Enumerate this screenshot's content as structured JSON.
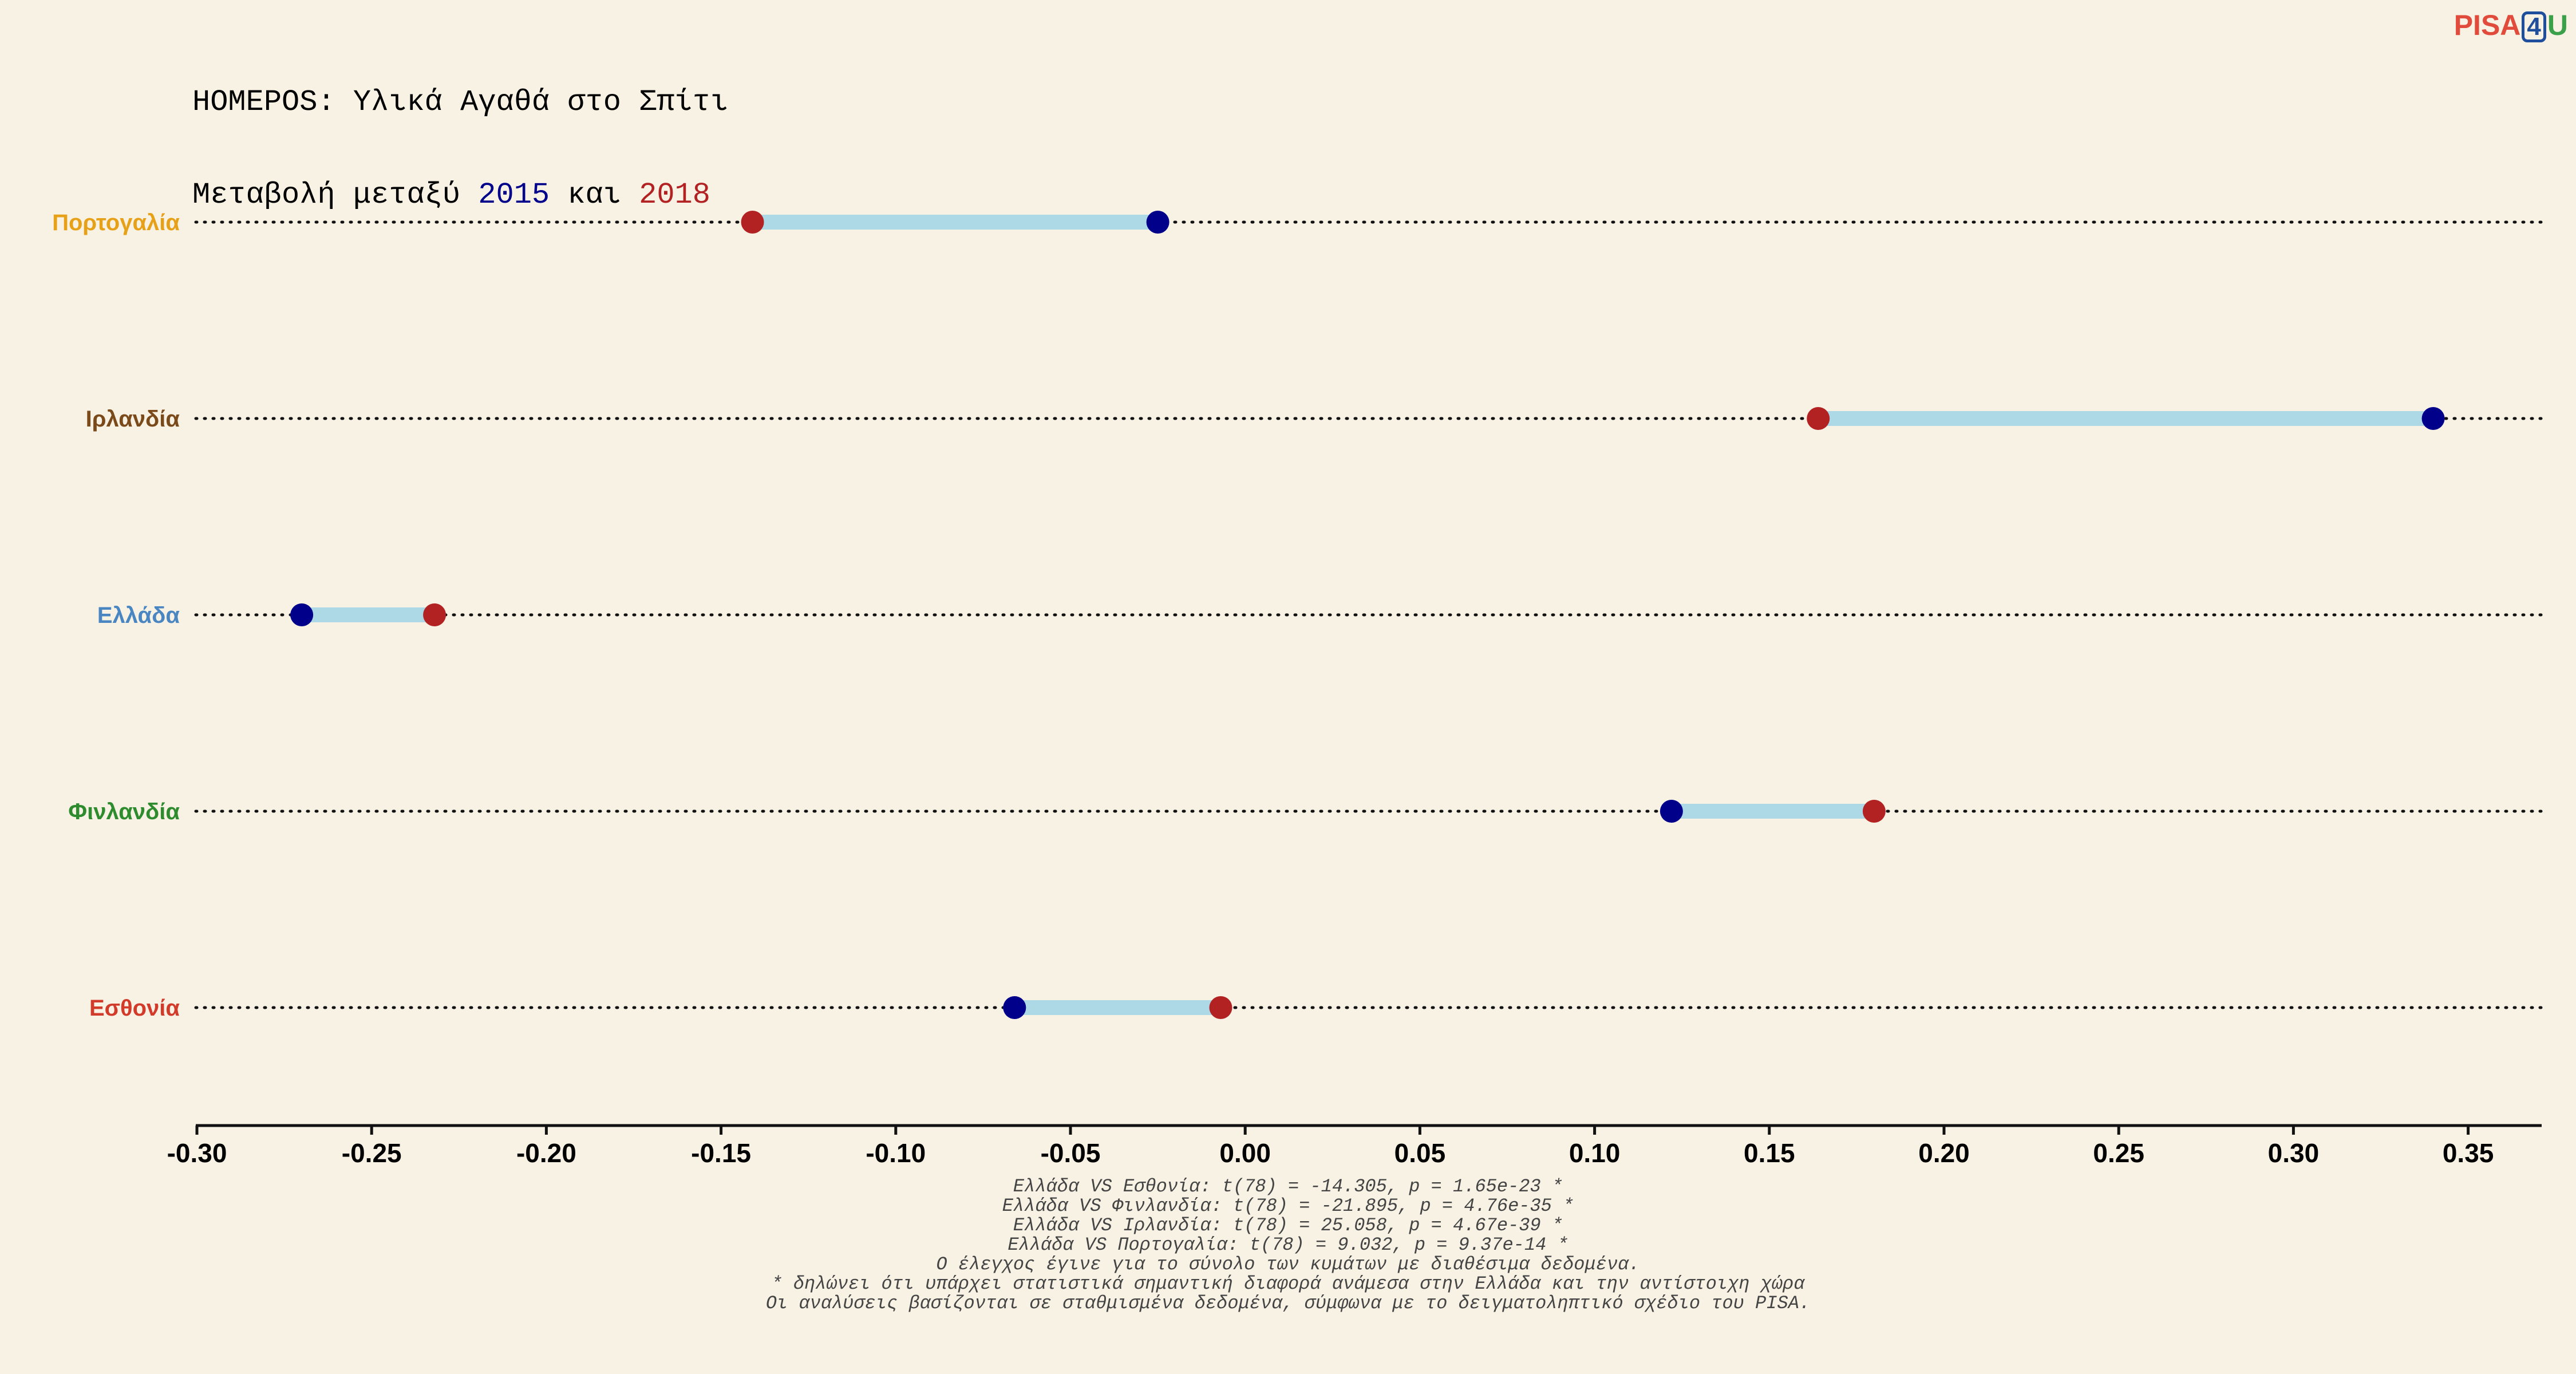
{
  "title": {
    "line1": "HOMEPOS: Υλικά Αγαθά στο Σπίτι",
    "line2_prefix": "Μεταβολή μεταξύ ",
    "year_a": "2015",
    "line2_mid": " και ",
    "year_b": "2018"
  },
  "logo": {
    "pisa": "PISA",
    "four": "4",
    "u": "U"
  },
  "colors": {
    "background": "#f8f2e5",
    "dot_2015": "#00008b",
    "dot_2018": "#b22222",
    "segment": "#add8e6"
  },
  "chart_data": {
    "type": "dumbbell",
    "xlim": [
      -0.3,
      0.37
    ],
    "x_ticks": [
      -0.3,
      -0.25,
      -0.2,
      -0.15,
      -0.1,
      -0.05,
      0.0,
      0.05,
      0.1,
      0.15,
      0.2,
      0.25,
      0.3,
      0.35
    ],
    "x_tick_labels": [
      "-0.30",
      "-0.25",
      "-0.20",
      "-0.15",
      "-0.10",
      "-0.05",
      "0.00",
      "0.05",
      "0.10",
      "0.15",
      "0.20",
      "0.25",
      "0.30",
      "0.35"
    ],
    "grid": "dotted horizontal per country",
    "countries": [
      {
        "name": "Πορτογαλία",
        "label_color": "#e6a118",
        "v2015": -0.025,
        "v2018": -0.141
      },
      {
        "name": "Ιρλανδία",
        "label_color": "#7b4a1a",
        "v2015": 0.34,
        "v2018": 0.164
      },
      {
        "name": "Ελλάδα",
        "label_color": "#4a86c1",
        "v2015": -0.27,
        "v2018": -0.232
      },
      {
        "name": "Φινλανδία",
        "label_color": "#2e8b2e",
        "v2015": 0.122,
        "v2018": 0.18
      },
      {
        "name": "Εσθονία",
        "label_color": "#d23a2a",
        "v2015": -0.066,
        "v2018": -0.007
      }
    ]
  },
  "footnotes": [
    "Ελλάδα VS Εσθονία: t(78) = -14.305, p = 1.65e-23 *",
    "Ελλάδα VS Φινλανδία: t(78) = -21.895, p = 4.76e-35 *",
    "Ελλάδα VS Ιρλανδία: t(78) = 25.058, p = 4.67e-39 *",
    "Ελλάδα VS Πορτογαλία: t(78) = 9.032, p = 9.37e-14 *",
    "Ο έλεγχος έγινε για το σύνολο των κυμάτων με διαθέσιμα δεδομένα.",
    "* δηλώνει ότι υπάρχει στατιστικά σημαντική διαφορά ανάμεσα στην Ελλάδα και την αντίστοιχη χώρα",
    "Οι αναλύσεις βασίζονται σε σταθμισμένα δεδομένα, σύμφωνα με το δειγματοληπτικό σχέδιο του PISA."
  ]
}
